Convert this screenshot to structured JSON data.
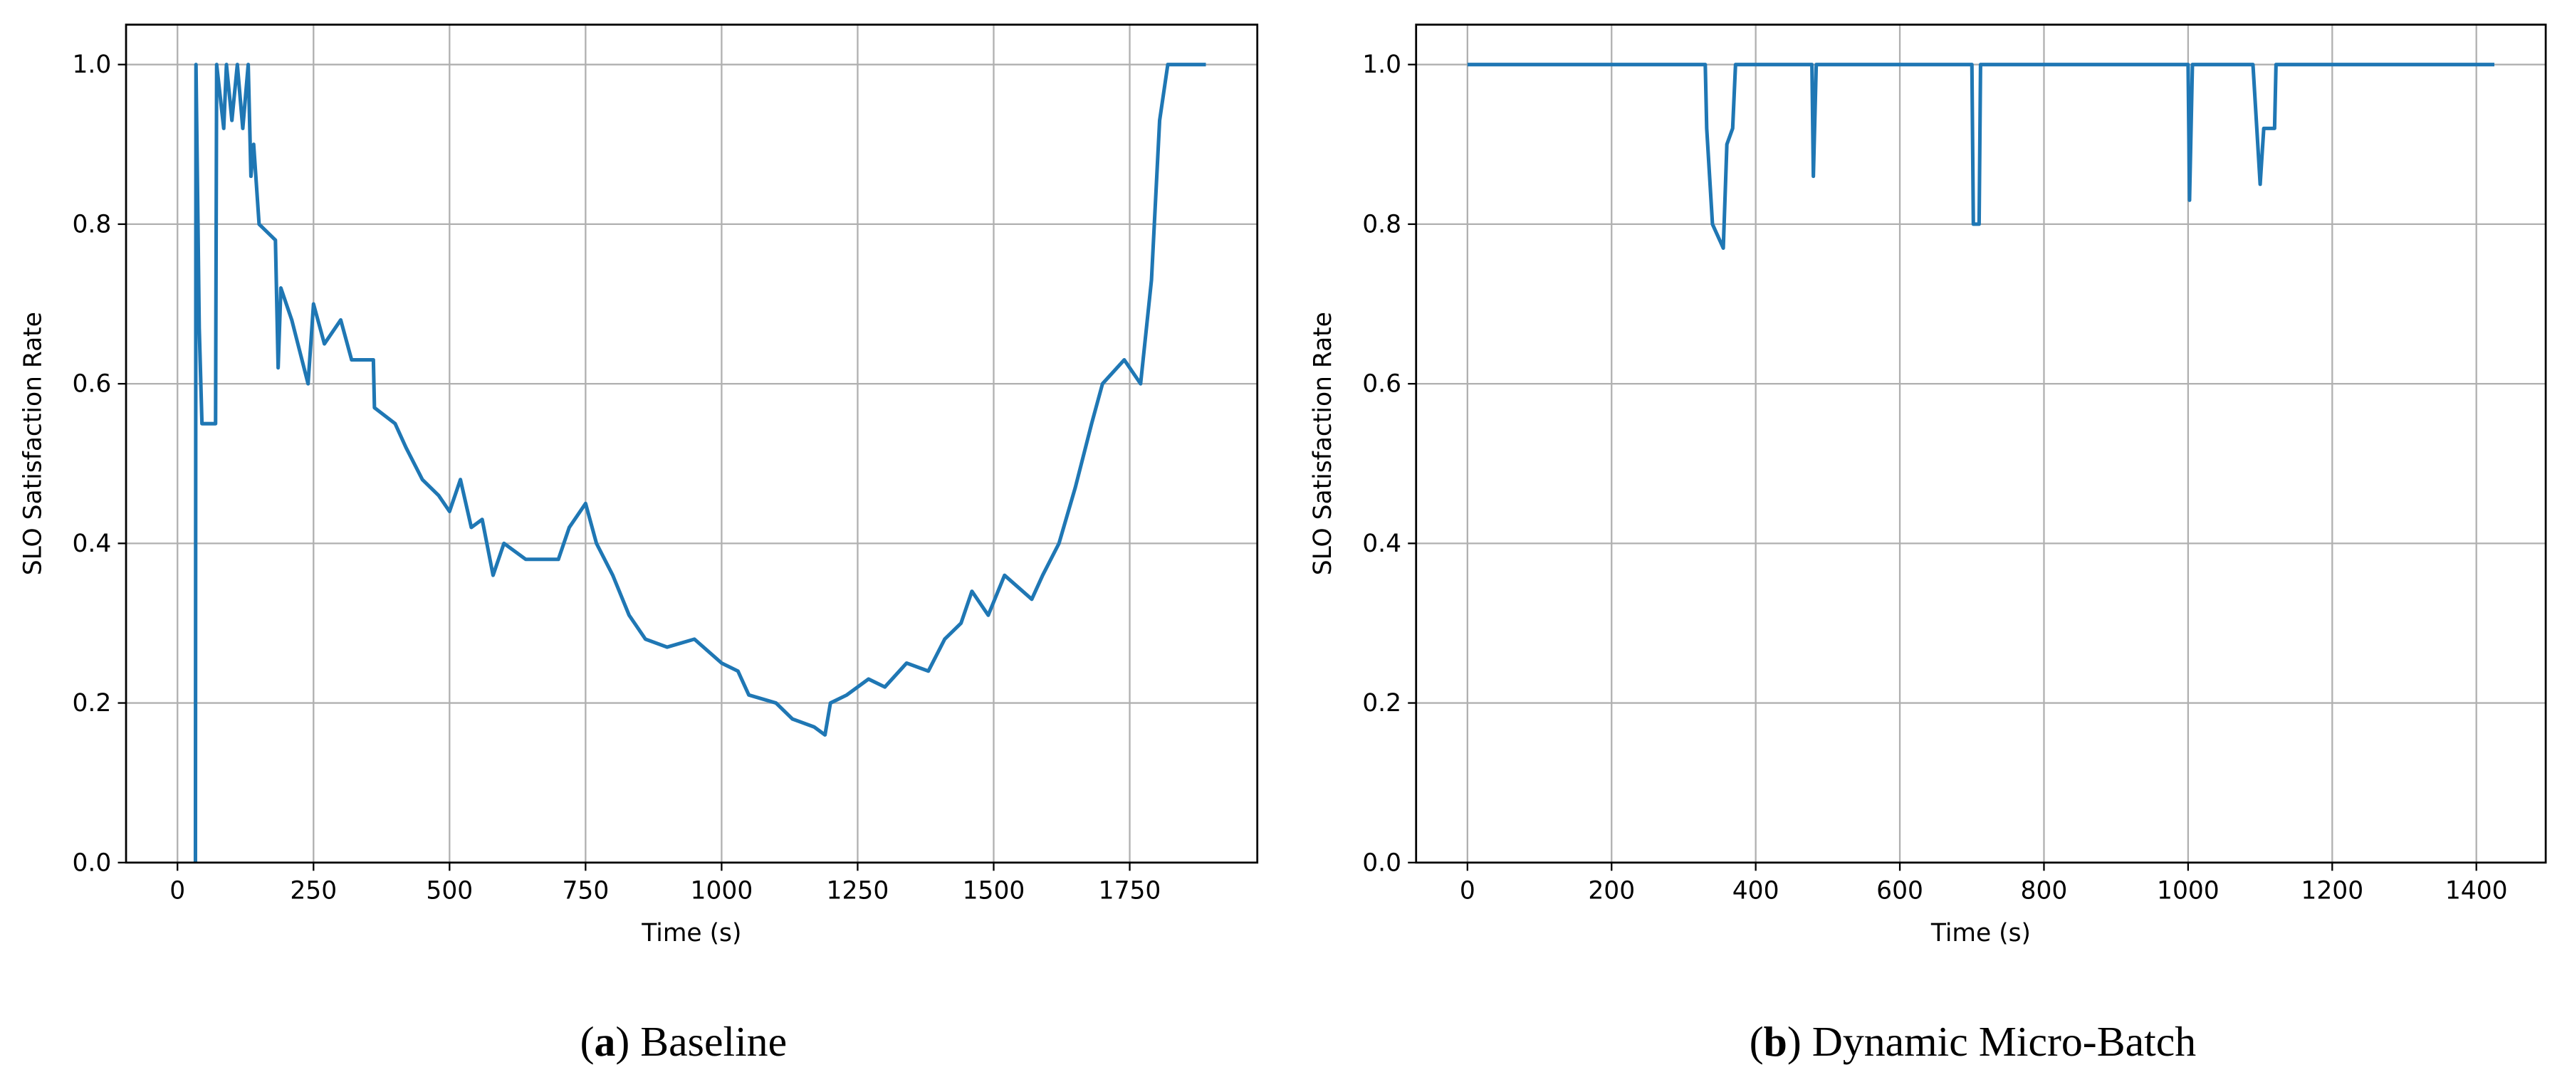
{
  "chart_data": [
    {
      "type": "line",
      "x_label": "Time (s)",
      "y_label": "SLO Satisfaction Rate",
      "caption_label": "a",
      "caption": "Baseline",
      "color": "#1f77b4",
      "grid": true,
      "xlim": [
        -94.5,
        1984.5
      ],
      "xticks": [
        0,
        250,
        500,
        750,
        1000,
        1250,
        1500,
        1750
      ],
      "ylim": [
        0,
        1.05
      ],
      "yticks": [
        {
          "value": 0,
          "label": "0.0"
        },
        0.2,
        0.4,
        0.6,
        0.8,
        {
          "value": 1,
          "label": "1.0"
        }
      ],
      "x": [
        33,
        34,
        40,
        45,
        70,
        72,
        85,
        90,
        100,
        110,
        120,
        130,
        135,
        140,
        150,
        180,
        185,
        190,
        210,
        240,
        250,
        270,
        300,
        320,
        360,
        362,
        400,
        420,
        450,
        480,
        500,
        520,
        540,
        560,
        580,
        600,
        640,
        700,
        720,
        750,
        770,
        800,
        830,
        860,
        900,
        950,
        1000,
        1030,
        1050,
        1100,
        1130,
        1170,
        1190,
        1200,
        1230,
        1270,
        1300,
        1340,
        1380,
        1410,
        1440,
        1460,
        1490,
        1520,
        1570,
        1590,
        1620,
        1650,
        1680,
        1700,
        1740,
        1770,
        1790,
        1805,
        1820,
        1890
      ],
      "values": [
        0,
        1.0,
        0.67,
        0.55,
        0.55,
        1.0,
        0.92,
        1.0,
        0.93,
        1.0,
        0.92,
        1.0,
        0.86,
        0.9,
        0.8,
        0.78,
        0.62,
        0.72,
        0.68,
        0.6,
        0.7,
        0.65,
        0.68,
        0.63,
        0.63,
        0.57,
        0.55,
        0.52,
        0.48,
        0.46,
        0.44,
        0.48,
        0.42,
        0.43,
        0.36,
        0.4,
        0.38,
        0.38,
        0.42,
        0.45,
        0.4,
        0.36,
        0.31,
        0.28,
        0.27,
        0.28,
        0.25,
        0.24,
        0.21,
        0.2,
        0.18,
        0.17,
        0.16,
        0.2,
        0.21,
        0.23,
        0.22,
        0.25,
        0.24,
        0.28,
        0.3,
        0.34,
        0.31,
        0.36,
        0.33,
        0.36,
        0.4,
        0.47,
        0.55,
        0.6,
        0.63,
        0.6,
        0.73,
        0.93,
        1.0,
        1.0
      ]
    },
    {
      "type": "line",
      "x_label": "Time (s)",
      "y_label": "SLO Satisfaction Rate",
      "caption_label": "b",
      "caption": "Dynamic Micro-Batch",
      "color": "#1f77b4",
      "grid": true,
      "xlim": [
        -71.25,
        1496.25
      ],
      "xticks": [
        0,
        200,
        400,
        600,
        800,
        1000,
        1200,
        1400
      ],
      "ylim": [
        0,
        1.05
      ],
      "yticks": [
        {
          "value": 0,
          "label": "0.0"
        },
        0.2,
        0.4,
        0.6,
        0.8,
        {
          "value": 1,
          "label": "1.0"
        }
      ],
      "x": [
        0,
        330,
        332,
        340,
        350,
        355,
        360,
        368,
        372,
        478,
        480,
        484,
        700,
        702,
        710,
        712,
        1000,
        1002,
        1006,
        1090,
        1100,
        1105,
        1120,
        1122,
        1425
      ],
      "values": [
        1.0,
        1.0,
        0.92,
        0.8,
        0.78,
        0.77,
        0.9,
        0.92,
        1.0,
        1.0,
        0.86,
        1.0,
        1.0,
        0.8,
        0.8,
        1.0,
        1.0,
        0.83,
        1.0,
        1.0,
        0.85,
        0.92,
        0.92,
        1.0,
        1.0
      ]
    }
  ]
}
